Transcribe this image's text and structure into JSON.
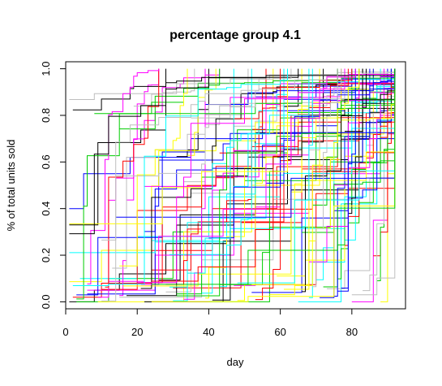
{
  "chart_data": {
    "type": "line",
    "line_style": "step",
    "title": "percentage group 4.1",
    "xlabel": "day",
    "ylabel": "% of total units sold",
    "xlim": [
      0,
      95
    ],
    "ylim": [
      -0.03,
      1.03
    ],
    "x_ticks": [
      0,
      20,
      40,
      60,
      80
    ],
    "y_ticks": [
      0.0,
      0.2,
      0.4,
      0.6,
      0.8,
      1.0
    ],
    "x_tick_labels": [
      "0",
      "20",
      "40",
      "60",
      "80"
    ],
    "y_tick_labels": [
      "0.0",
      "0.2",
      "0.4",
      "0.6",
      "0.8",
      "1.0"
    ],
    "grid": false,
    "legend": "none",
    "palette": [
      "#000000",
      "#FF0000",
      "#00CD00",
      "#0000FF",
      "#00FFFF",
      "#FF00FF",
      "#FFFF00",
      "#BEBEBE"
    ],
    "series_count": 120,
    "series_pattern": {
      "x_start_day_range": [
        1,
        92
      ],
      "x_end_day": 92,
      "y_start_range": [
        0.0,
        1.0
      ],
      "y_end": 1.0
    },
    "series": [
      {
        "x": [
          1,
          8,
          15,
          28,
          45,
          62,
          79,
          92
        ],
        "values": [
          0.0,
          0.05,
          0.12,
          0.25,
          0.42,
          0.61,
          0.83,
          1.0
        ]
      },
      {
        "x": [
          2,
          10,
          24,
          41,
          59,
          76,
          92
        ],
        "values": [
          0.02,
          0.08,
          0.22,
          0.4,
          0.58,
          0.79,
          1.0
        ]
      },
      {
        "x": [
          3,
          12,
          30,
          50,
          70,
          85,
          92
        ],
        "values": [
          0.0,
          0.1,
          0.3,
          0.52,
          0.71,
          0.9,
          1.0
        ]
      },
      {
        "x": [
          1,
          5,
          18,
          35,
          55,
          78,
          90
        ],
        "values": [
          0.4,
          0.55,
          0.62,
          0.7,
          0.82,
          0.94,
          1.0
        ]
      },
      {
        "x": [
          4,
          20,
          40,
          60,
          80,
          91
        ],
        "values": [
          0.1,
          0.28,
          0.45,
          0.66,
          0.86,
          1.0
        ]
      },
      {
        "x": [
          6,
          25,
          47,
          68,
          88,
          92
        ],
        "values": [
          0.05,
          0.2,
          0.38,
          0.55,
          0.8,
          1.0
        ]
      },
      {
        "x": [
          9,
          33,
          52,
          71,
          89
        ],
        "values": [
          0.0,
          0.3,
          0.5,
          0.72,
          1.0
        ]
      },
      {
        "x": [
          15,
          38,
          58,
          80,
          92
        ],
        "values": [
          0.02,
          0.18,
          0.44,
          0.7,
          1.0
        ]
      },
      {
        "x": [
          22,
          44,
          63,
          82,
          91
        ],
        "values": [
          0.0,
          0.26,
          0.48,
          0.77,
          1.0
        ]
      },
      {
        "x": [
          30,
          49,
          66,
          84,
          92
        ],
        "values": [
          0.06,
          0.34,
          0.57,
          0.81,
          1.0
        ]
      },
      {
        "x": [
          40,
          57,
          74,
          88,
          92
        ],
        "values": [
          0.0,
          0.32,
          0.6,
          0.85,
          1.0
        ]
      },
      {
        "x": [
          52,
          66,
          79,
          92
        ],
        "values": [
          0.04,
          0.36,
          0.7,
          1.0
        ]
      },
      {
        "x": [
          65,
          77,
          87,
          92
        ],
        "values": [
          0.0,
          0.42,
          0.78,
          1.0
        ]
      },
      {
        "x": [
          80,
          86,
          90,
          92
        ],
        "values": [
          0.0,
          0.35,
          0.72,
          1.0
        ]
      },
      {
        "x": [
          88,
          90,
          92
        ],
        "values": [
          0.0,
          0.55,
          1.0
        ]
      }
    ]
  }
}
